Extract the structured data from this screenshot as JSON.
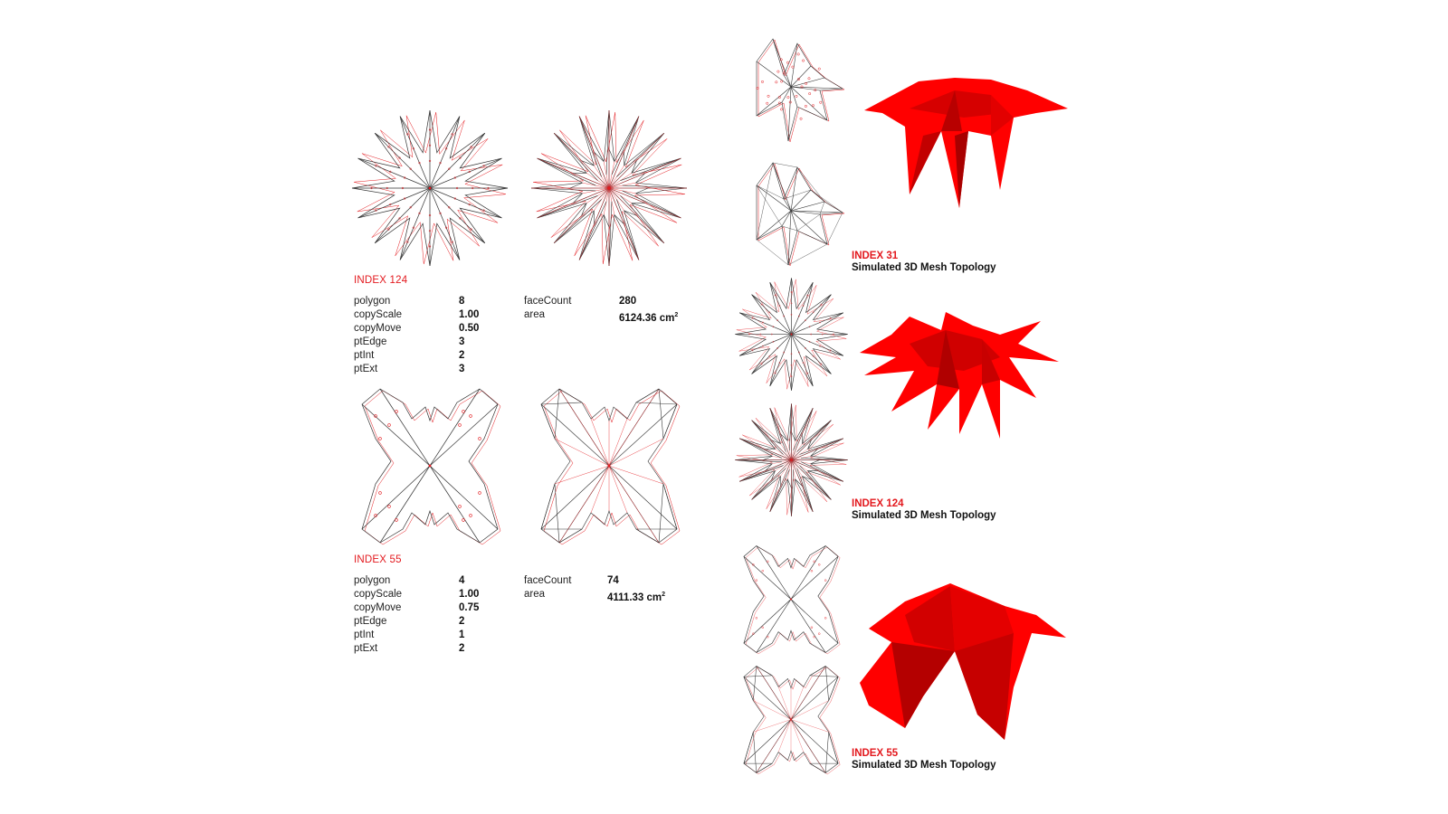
{
  "colors": {
    "accent": "#e3191e",
    "mesh_red": "#ff0000",
    "line": "#222222"
  },
  "left_panels": [
    {
      "index_label": "INDEX 124",
      "params_left": [
        {
          "name": "polygon",
          "value": "8"
        },
        {
          "name": "copyScale",
          "value": "1.00"
        },
        {
          "name": "copyMove",
          "value": "0.50"
        },
        {
          "name": "ptEdge",
          "value": "3"
        },
        {
          "name": "ptInt",
          "value": "2"
        },
        {
          "name": "ptExt",
          "value": "3"
        }
      ],
      "params_right": [
        {
          "name": "faceCount",
          "value": "280"
        },
        {
          "name": "area",
          "value": "6124.36 cm",
          "unit_sup": "2"
        }
      ]
    },
    {
      "index_label": "INDEX 55",
      "params_left": [
        {
          "name": "polygon",
          "value": "4"
        },
        {
          "name": "copyScale",
          "value": "1.00"
        },
        {
          "name": "copyMove",
          "value": "0.75"
        },
        {
          "name": "ptEdge",
          "value": "2"
        },
        {
          "name": "ptInt",
          "value": "1"
        },
        {
          "name": "ptExt",
          "value": "2"
        }
      ],
      "params_right": [
        {
          "name": "faceCount",
          "value": "74"
        },
        {
          "name": "area",
          "value": "4111.33 cm",
          "unit_sup": "2"
        }
      ]
    }
  ],
  "right_panels": [
    {
      "index_label": "INDEX 31",
      "subtitle": "Simulated 3D Mesh Topology"
    },
    {
      "index_label": "INDEX 124",
      "subtitle": "Simulated 3D Mesh Topology"
    },
    {
      "index_label": "INDEX 55",
      "subtitle": "Simulated 3D Mesh Topology"
    }
  ]
}
